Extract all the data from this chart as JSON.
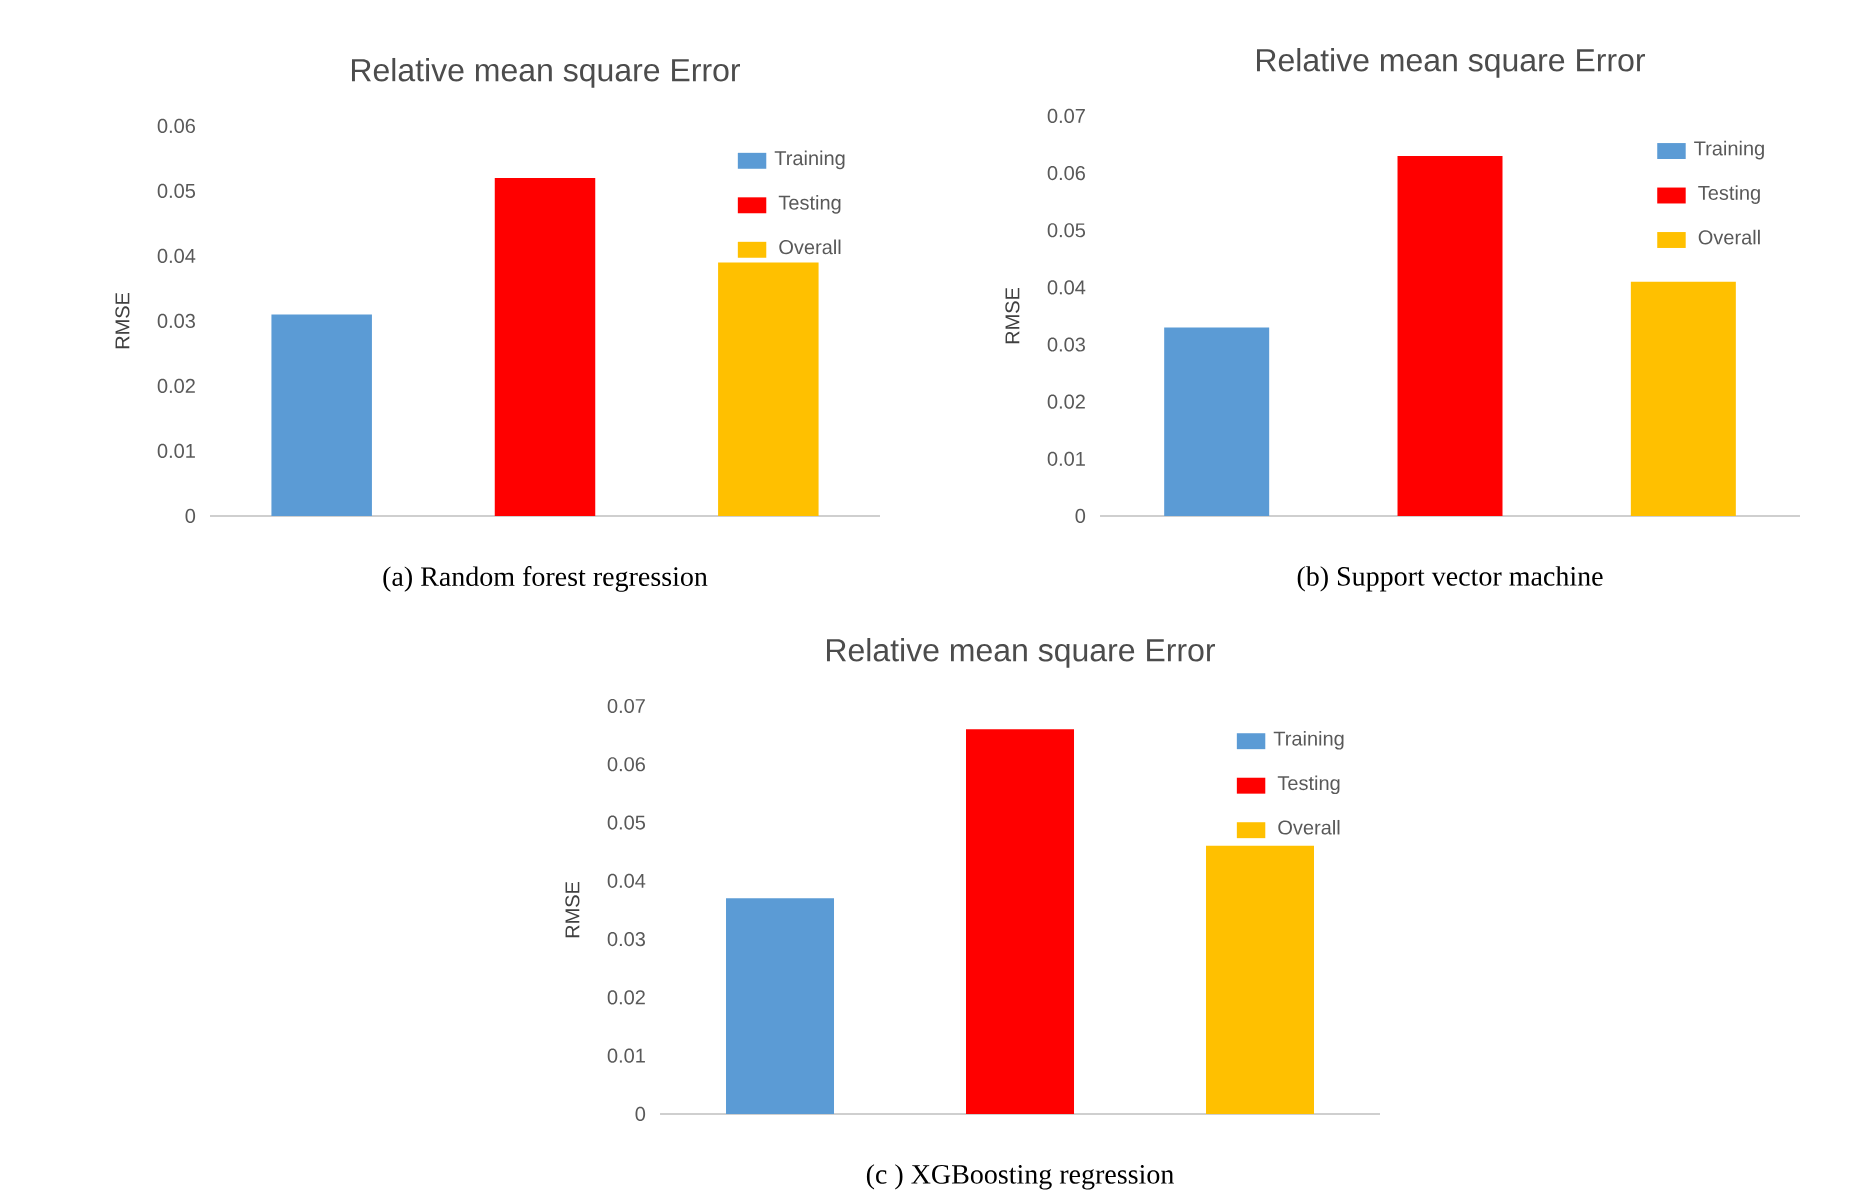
{
  "chart_data": [
    {
      "type": "bar",
      "title": "Relative mean square Error",
      "ylabel": "RMSE",
      "annotations": [
        "(a) Random forest regression"
      ],
      "categories": [
        null,
        null,
        null
      ],
      "series": [
        {
          "name": "Training",
          "color": "#5b9bd5",
          "values": [
            0.031,
            null,
            null
          ]
        },
        {
          "name": "Testing",
          "color": "#ff0000",
          "values": [
            null,
            0.052,
            null
          ]
        },
        {
          "name": "Overall",
          "color": "#ffc000",
          "values": [
            null,
            null,
            0.039
          ]
        }
      ],
      "ylim": [
        0,
        0.06
      ],
      "yticks": [
        0,
        0.01,
        0.02,
        0.03,
        0.04,
        0.05,
        0.06
      ],
      "legend": "top right"
    },
    {
      "type": "bar",
      "title": "Relative mean square Error",
      "ylabel": "RMSE",
      "annotations": [
        "(b) Support vector machine"
      ],
      "categories": [
        null,
        null,
        null
      ],
      "series": [
        {
          "name": "Training",
          "color": "#5b9bd5",
          "values": [
            0.033,
            null,
            null
          ]
        },
        {
          "name": "Testing",
          "color": "#ff0000",
          "values": [
            null,
            0.063,
            null
          ]
        },
        {
          "name": "Overall",
          "color": "#ffc000",
          "values": [
            null,
            null,
            0.041
          ]
        }
      ],
      "ylim": [
        0,
        0.07
      ],
      "yticks": [
        0,
        0.01,
        0.02,
        0.03,
        0.04,
        0.05,
        0.06,
        0.07
      ],
      "legend": "top right"
    },
    {
      "type": "bar",
      "title": "Relative mean square Error",
      "ylabel": "RMSE",
      "annotations": [
        "(c ) XGBoosting regression"
      ],
      "categories": [
        null,
        null,
        null
      ],
      "series": [
        {
          "name": "Training",
          "color": "#5b9bd5",
          "values": [
            0.037,
            null,
            null
          ]
        },
        {
          "name": "Testing",
          "color": "#ff0000",
          "values": [
            null,
            0.066,
            null
          ]
        },
        {
          "name": "Overall",
          "color": "#ffc000",
          "values": [
            null,
            null,
            0.046
          ]
        }
      ],
      "ylim": [
        0,
        0.07
      ],
      "yticks": [
        0,
        0.01,
        0.02,
        0.03,
        0.04,
        0.05,
        0.06,
        0.07
      ],
      "legend": "top right"
    }
  ]
}
